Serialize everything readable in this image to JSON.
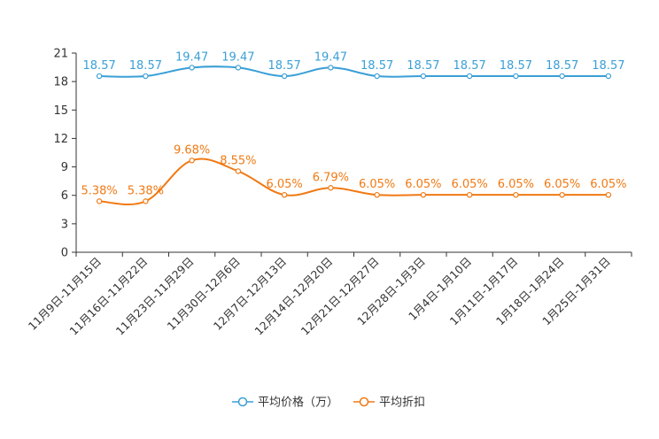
{
  "chart_data": {
    "type": "line",
    "categories": [
      "11月9日-11月15日",
      "11月16日-11月22日",
      "11月23日-11月29日",
      "11月30日-12月6日",
      "12月7日-12月13日",
      "12月14日-12月20日",
      "12月21日-12月27日",
      "12月28日-1月3日",
      "1月4日-1月10日",
      "1月11日-1月17日",
      "1月18日-1月24日",
      "1月25日-1月31日"
    ],
    "series": [
      {
        "name": "平均价格（万）",
        "color": "#3a9fd6",
        "values": [
          18.57,
          18.57,
          19.47,
          19.47,
          18.57,
          19.47,
          18.57,
          18.57,
          18.57,
          18.57,
          18.57,
          18.57
        ],
        "labels": [
          "18.57",
          "18.57",
          "19.47",
          "19.47",
          "18.57",
          "19.47",
          "18.57",
          "18.57",
          "18.57",
          "18.57",
          "18.57",
          "18.57"
        ]
      },
      {
        "name": "平均折扣",
        "color": "#f07a14",
        "values": [
          5.38,
          5.38,
          9.68,
          8.55,
          6.05,
          6.79,
          6.05,
          6.05,
          6.05,
          6.05,
          6.05,
          6.05
        ],
        "labels": [
          "5.38%",
          "5.38%",
          "9.68%",
          "8.55%",
          "6.05%",
          "6.79%",
          "6.05%",
          "6.05%",
          "6.05%",
          "6.05%",
          "6.05%",
          "6.05%"
        ]
      }
    ],
    "y_ticks": [
      "0",
      "3",
      "6",
      "9",
      "12",
      "15",
      "18",
      "21"
    ],
    "ylim": [
      0,
      21
    ],
    "title": "",
    "xlabel": "",
    "ylabel": "",
    "grid": false,
    "legend_position": "bottom"
  }
}
